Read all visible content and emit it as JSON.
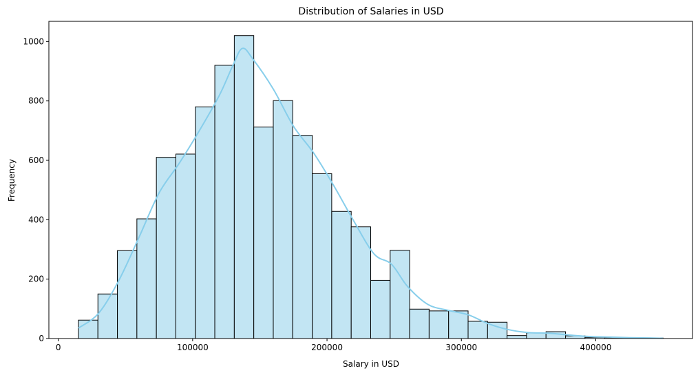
{
  "chart_data": {
    "type": "bar",
    "title": "Distribution of Salaries in USD",
    "xlabel": "Salary in USD",
    "ylabel": "Frequency",
    "xlim": [
      -7000,
      472000
    ],
    "ylim": [
      0,
      1068
    ],
    "xticks": [
      0,
      100000,
      200000,
      300000,
      400000
    ],
    "xtick_labels": [
      "0",
      "100000",
      "200000",
      "300000",
      "400000"
    ],
    "yticks": [
      0,
      200,
      400,
      600,
      800,
      1000
    ],
    "ytick_labels": [
      "0",
      "200",
      "400",
      "600",
      "800",
      "1000"
    ],
    "bin_edges": [
      15000,
      29500,
      44000,
      58500,
      73000,
      87500,
      102000,
      116500,
      131000,
      145500,
      160000,
      174500,
      189000,
      203500,
      218000,
      232500,
      247000,
      261500,
      276000,
      290500,
      305000,
      319500,
      334000,
      348500,
      363000,
      377500,
      392000,
      406500,
      421000,
      435500,
      450000
    ],
    "values": [
      62,
      150,
      296,
      403,
      610,
      621,
      780,
      920,
      1020,
      712,
      801,
      684,
      555,
      428,
      376,
      196,
      297,
      99,
      93,
      93,
      58,
      55,
      10,
      19,
      23,
      9,
      4,
      3,
      3,
      2
    ],
    "kde": {
      "x": [
        15000,
        30000,
        45000,
        60000,
        75000,
        90000,
        105000,
        120000,
        130000,
        137000,
        145000,
        160000,
        175000,
        190000,
        205000,
        220000,
        235000,
        248000,
        260000,
        275000,
        290000,
        305000,
        320000,
        335000,
        350000,
        365000,
        380000,
        395000,
        410000,
        425000,
        440000,
        450000
      ],
      "y": [
        35,
        85,
        195,
        340,
        490,
        590,
        700,
        820,
        920,
        977,
        940,
        840,
        715,
        625,
        515,
        395,
        285,
        250,
        175,
        115,
        95,
        80,
        50,
        30,
        20,
        18,
        12,
        7,
        5,
        3,
        2,
        1
      ]
    },
    "bar_color": "#c2e5f3",
    "bar_edge_color": "#000000",
    "kde_color": "#87ceeb",
    "grid": false
  }
}
